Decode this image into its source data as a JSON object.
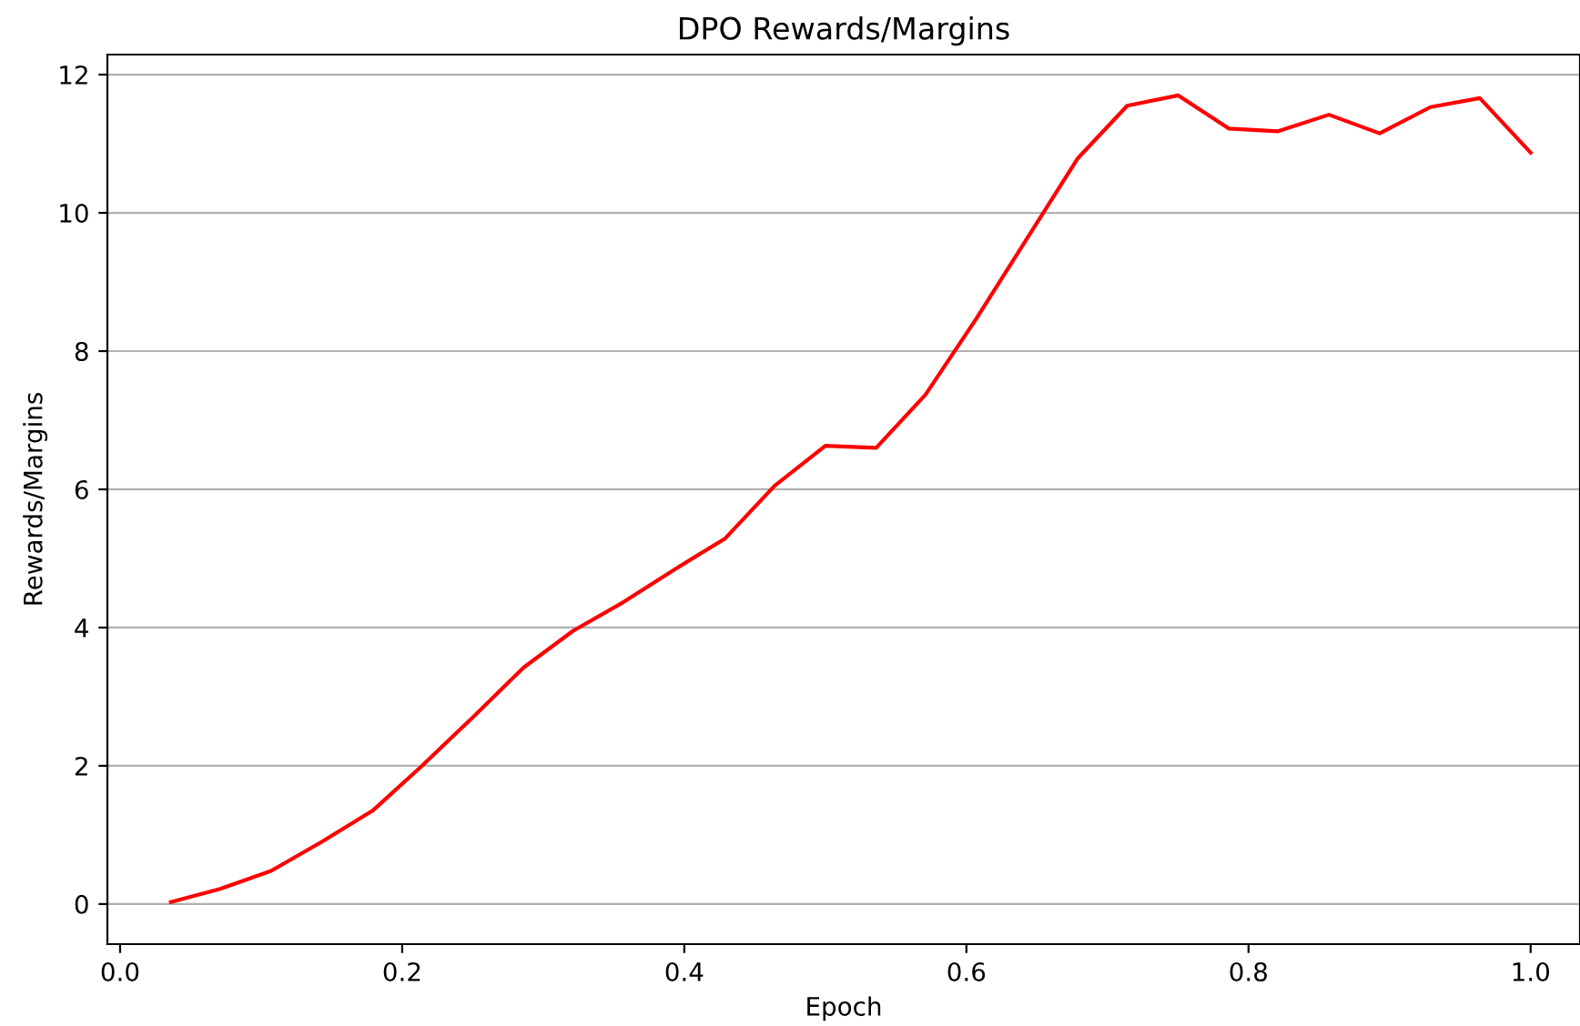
{
  "chart_data": {
    "type": "line",
    "title": "DPO Rewards/Margins",
    "xlabel": "Epoch",
    "ylabel": "Rewards/Margins",
    "x": [
      0.036,
      0.071,
      0.107,
      0.143,
      0.179,
      0.214,
      0.25,
      0.286,
      0.321,
      0.357,
      0.393,
      0.429,
      0.464,
      0.5,
      0.536,
      0.571,
      0.607,
      0.643,
      0.679,
      0.714,
      0.75,
      0.786,
      0.821,
      0.857,
      0.893,
      0.929,
      0.964,
      1.0
    ],
    "series": [
      {
        "color": "#ff0000",
        "values": [
          0.03,
          0.22,
          0.48,
          0.9,
          1.35,
          2.0,
          2.7,
          3.42,
          3.95,
          4.37,
          4.84,
          5.29,
          6.05,
          6.63,
          6.6,
          7.37,
          8.47,
          9.63,
          10.79,
          11.55,
          11.7,
          11.22,
          11.18,
          11.42,
          11.15,
          11.53,
          11.66,
          10.87
        ]
      }
    ],
    "xlim": [
      -0.009,
      1.035
    ],
    "ylim": [
      -0.58,
      12.29
    ],
    "xticks": [
      {
        "value": 0.0,
        "label": "0.0"
      },
      0.2,
      0.4,
      0.6,
      0.8,
      {
        "value": 1.0,
        "label": "1.0"
      }
    ],
    "yticks": [
      0,
      2,
      4,
      6,
      8,
      10,
      12
    ],
    "grid": "y",
    "marker": "none",
    "line_style": "solid"
  }
}
